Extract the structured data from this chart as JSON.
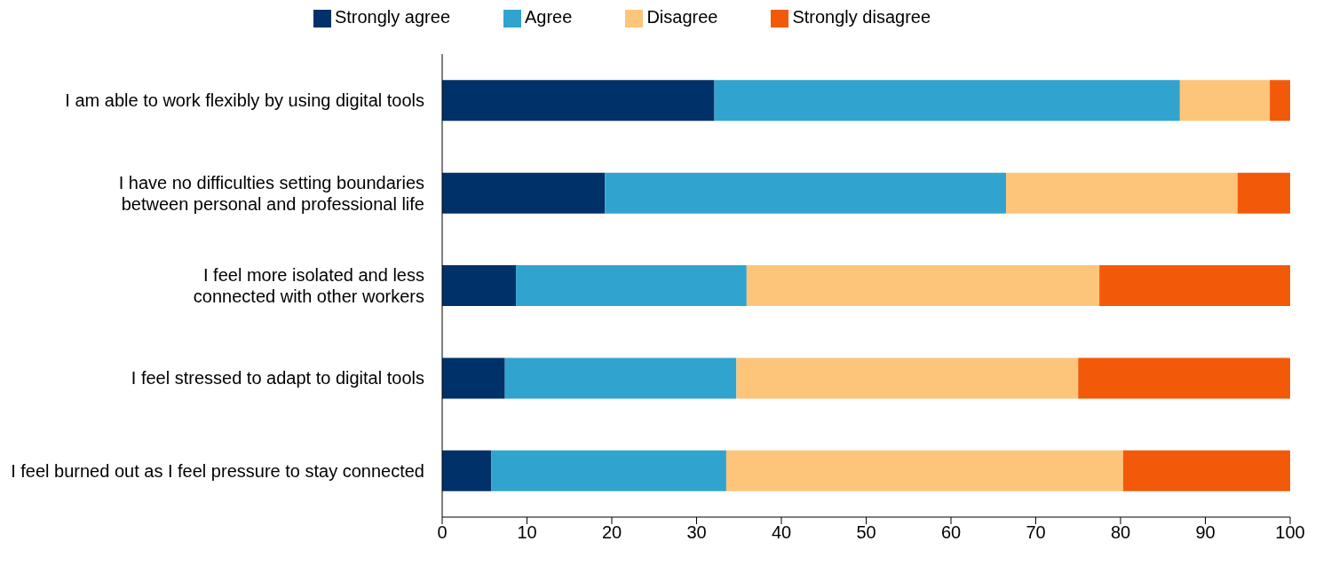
{
  "chart_data": {
    "type": "bar",
    "orientation": "horizontal",
    "stacked": true,
    "categories": [
      "I am able to work flexibly by using digital tools",
      "I have no difficulties setting boundaries between personal and professional life",
      "I feel more isolated and less connected with other workers",
      "I feel stressed to adapt to digital tools",
      "I feel burned out as I feel pressure to stay connected"
    ],
    "series": [
      {
        "name": "Strongly agree",
        "color": "#003169",
        "values": [
          32.1,
          19.2,
          8.7,
          7.4,
          5.8
        ]
      },
      {
        "name": "Agree",
        "color": "#31a3cf",
        "values": [
          54.9,
          47.3,
          27.2,
          27.3,
          27.7
        ]
      },
      {
        "name": "Disagree",
        "color": "#fdc57a",
        "values": [
          10.6,
          27.3,
          41.6,
          40.3,
          46.8
        ]
      },
      {
        "name": "Strongly disagree",
        "color": "#f25a0a",
        "values": [
          2.4,
          6.2,
          22.5,
          25.0,
          19.7
        ]
      }
    ],
    "xlim": [
      0,
      100
    ],
    "xticks": [
      0,
      10,
      20,
      30,
      40,
      50,
      60,
      70,
      80,
      90,
      100
    ],
    "grid": false,
    "legend": "top"
  }
}
